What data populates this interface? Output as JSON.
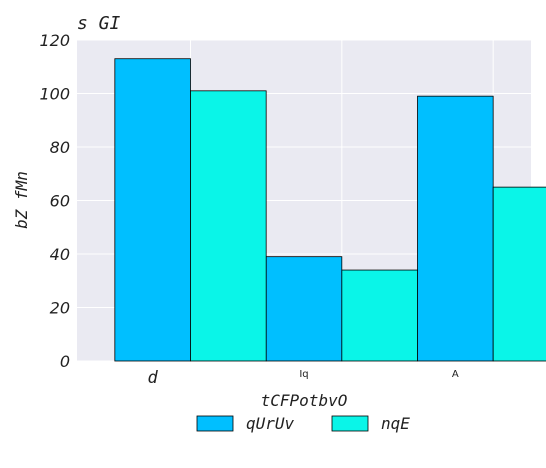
{
  "chart_data": {
    "type": "bar",
    "title": "s GI",
    "xlabel": "tCFPotbvO",
    "ylabel": "bZ fMn",
    "categories": [
      "d",
      "Iq",
      "A"
    ],
    "series": [
      {
        "name": "qUrUv",
        "color": "#00bfff",
        "values": [
          113,
          39,
          99
        ]
      },
      {
        "name": "nqE",
        "color": "#0af5e8",
        "values": [
          101,
          34,
          65
        ]
      }
    ],
    "ylim": [
      0,
      120
    ],
    "yticks": [
      "0",
      "20",
      "40",
      "60",
      "80",
      "100",
      "120"
    ],
    "grid": true,
    "legend_position": "bottom-center",
    "colors": {
      "plot_background": "#eaeaf2",
      "grid": "#ffffff",
      "bar_edge": "#000000",
      "text": "#222222"
    }
  }
}
